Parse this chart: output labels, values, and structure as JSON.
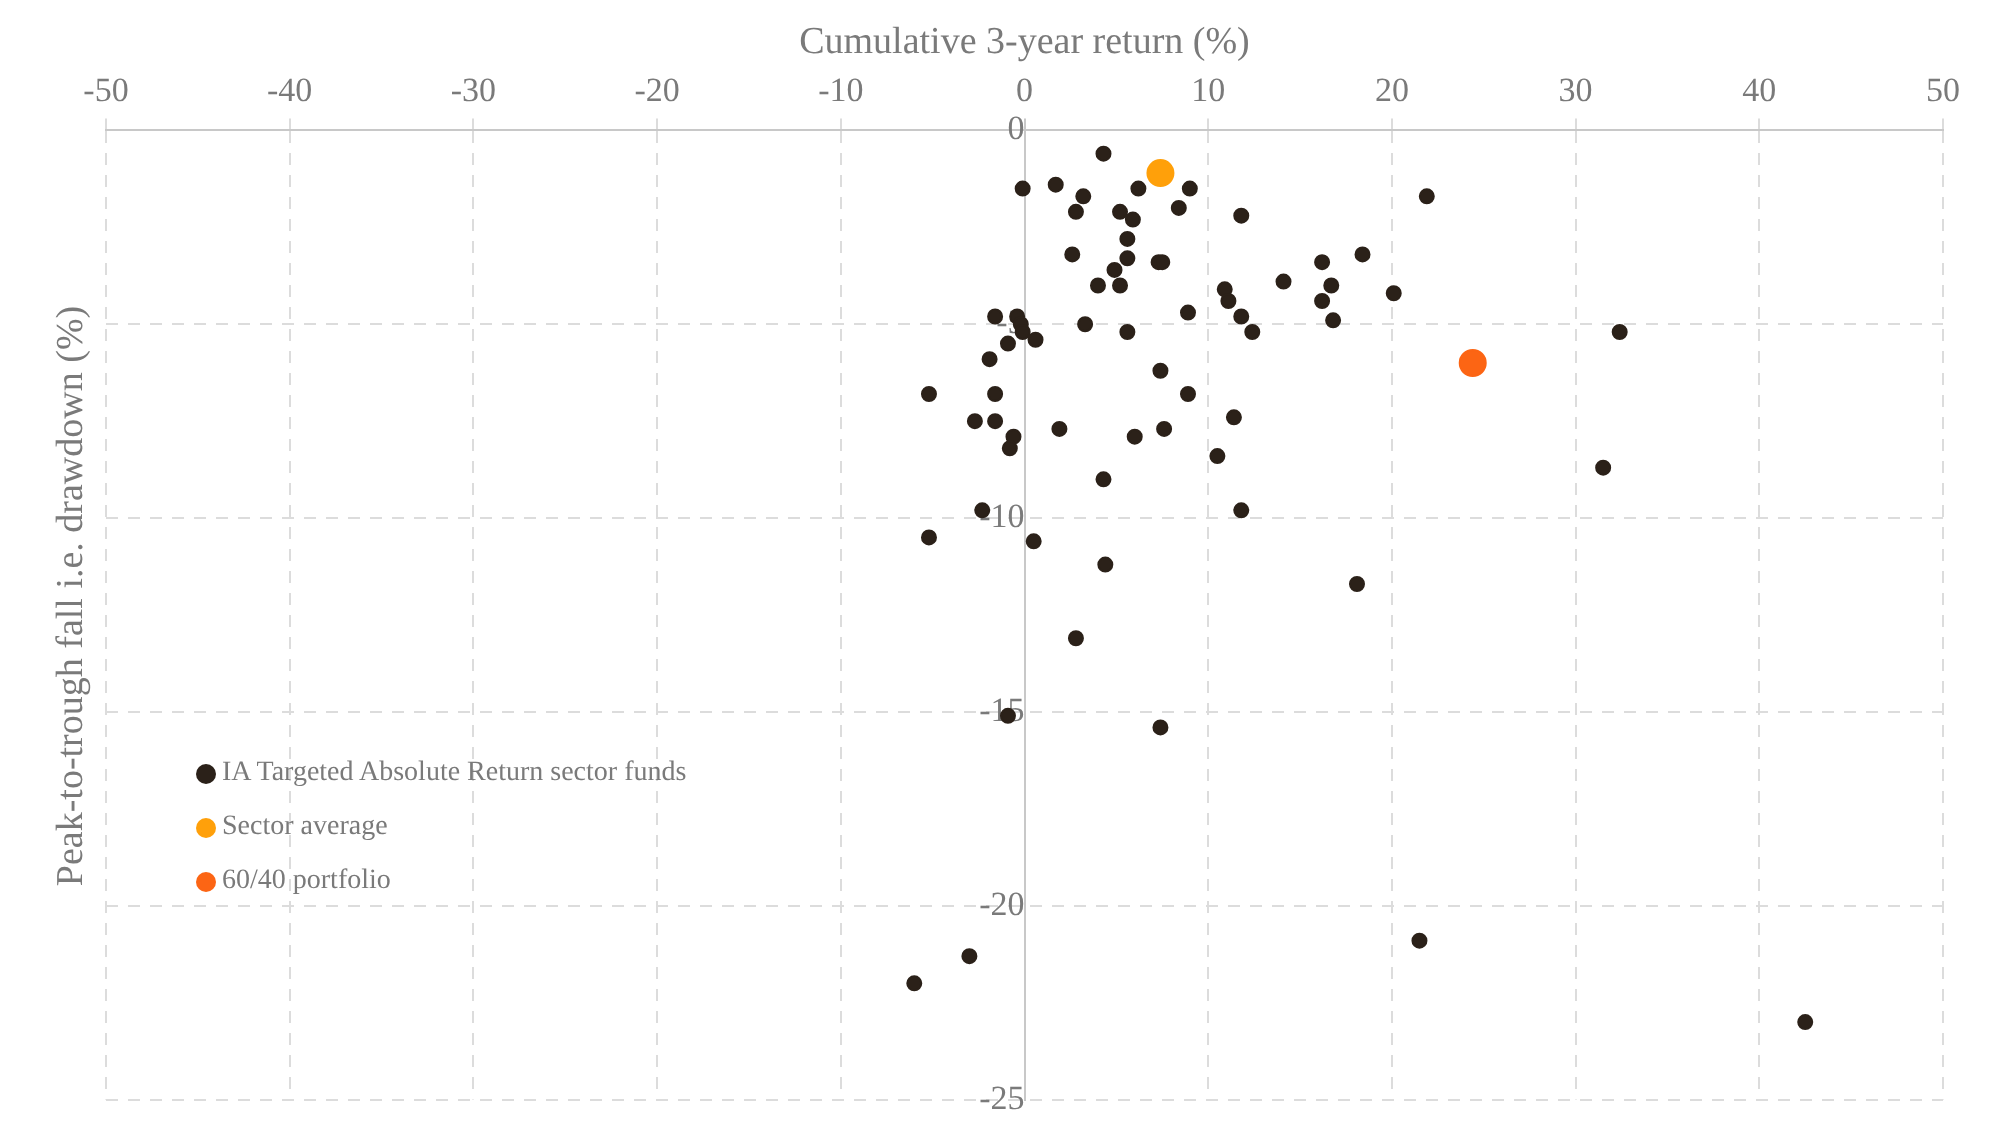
{
  "chart_data": {
    "type": "scatter",
    "xlabel": "Cumulative 3-year return (%)",
    "ylabel": "Peak-to-trough fall i.e. drawdown (%)",
    "xlim": [
      -50,
      50
    ],
    "xticks": [
      -50,
      -40,
      -30,
      -20,
      -10,
      0,
      10,
      20,
      30,
      40,
      50
    ],
    "ylim": [
      -25,
      0
    ],
    "yticks": [
      0,
      -5,
      -10,
      -15,
      -20,
      -25
    ],
    "grid": true,
    "legend": "left",
    "marker": "circle",
    "series": [
      {
        "name": "IA Targeted Absolute Return sector funds",
        "color": "#2b2119",
        "x": [
          4.3,
          1.7,
          -0.1,
          3.2,
          6.2,
          9.0,
          2.8,
          5.2,
          5.9,
          8.4,
          11.8,
          5.6,
          2.6,
          5.6,
          7.3,
          7.5,
          4.9,
          4.0,
          5.2,
          10.9,
          11.1,
          11.8,
          12.4,
          14.1,
          16.2,
          16.7,
          16.2,
          16.8,
          18.4,
          20.1,
          8.9,
          3.3,
          5.6,
          -1.6,
          -0.4,
          -0.2,
          -0.1,
          -0.9,
          0.6,
          -1.9,
          -5.2,
          -1.6,
          7.4,
          8.9,
          11.4,
          -2.7,
          -1.6,
          -0.6,
          -0.8,
          1.9,
          6.0,
          7.6,
          10.5,
          4.3,
          11.8,
          -2.3,
          -5.2,
          0.5,
          4.4,
          18.1,
          2.8,
          -0.9,
          7.4,
          -3.0,
          -6.0,
          21.9,
          32.4,
          31.5,
          21.5,
          42.5
        ],
        "values": [
          -0.6,
          -1.4,
          -1.5,
          -1.7,
          -1.5,
          -1.5,
          -2.1,
          -2.1,
          -2.3,
          -2.0,
          -2.2,
          -2.8,
          -3.2,
          -3.3,
          -3.4,
          -3.4,
          -3.6,
          -4.0,
          -4.0,
          -4.1,
          -4.4,
          -4.8,
          -5.2,
          -3.9,
          -3.4,
          -4.0,
          -4.4,
          -4.9,
          -3.2,
          -4.2,
          -4.7,
          -5.0,
          -5.2,
          -4.8,
          -4.8,
          -5.0,
          -5.2,
          -5.5,
          -5.4,
          -5.9,
          -6.8,
          -6.8,
          -6.2,
          -6.8,
          -7.4,
          -7.5,
          -7.5,
          -7.9,
          -8.2,
          -7.7,
          -7.9,
          -7.7,
          -8.4,
          -9.0,
          -9.8,
          -9.8,
          -10.5,
          -10.6,
          -11.2,
          -11.7,
          -13.1,
          -15.1,
          -15.4,
          -21.3,
          -22.0,
          -1.7,
          -5.2,
          -8.7,
          -20.9,
          -23.0
        ]
      },
      {
        "name": "Sector average",
        "color": "#ffa00a",
        "x": [
          7.4
        ],
        "values": [
          -1.1
        ]
      },
      {
        "name": "60/40 portfolio",
        "color": "#fc6514",
        "x": [
          24.4
        ],
        "values": [
          -6.0
        ]
      }
    ]
  }
}
